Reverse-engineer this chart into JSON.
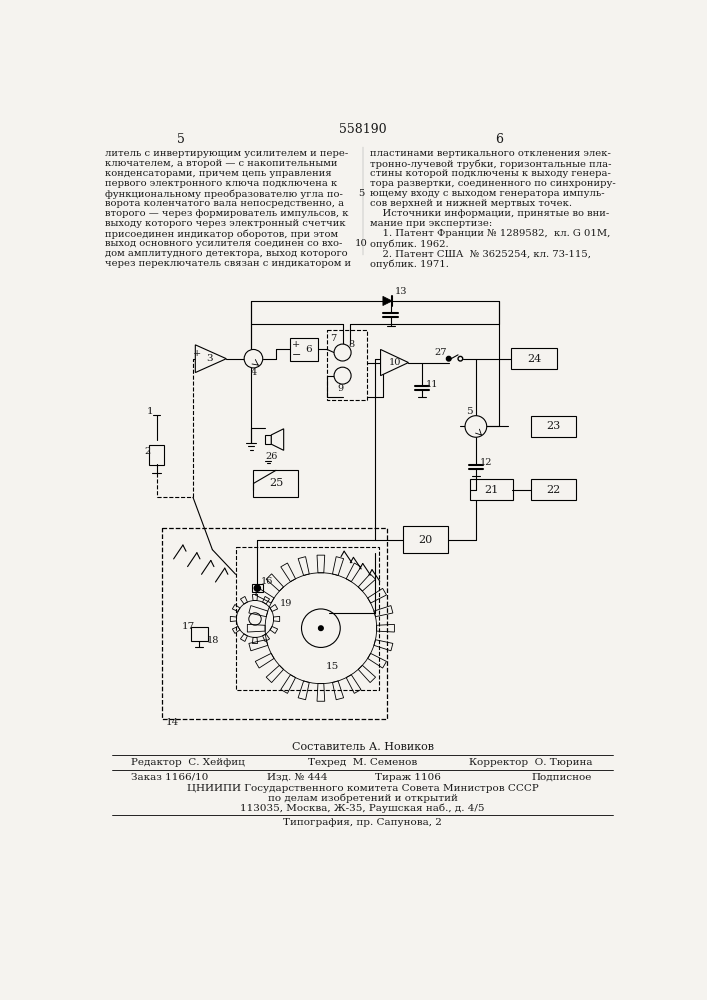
{
  "patent_number": "558190",
  "page_left": "5",
  "page_right": "6",
  "background_color": "#f5f3ef",
  "text_color": "#1a1a1a",
  "left_column_text": [
    "литель с инвертирующим усилителем и пере-",
    "ключателем, а второй — с накопительными",
    "конденсаторами, причем цепь управления",
    "первого электронного ключа подключена к",
    "функциональному преобразователю угла по-",
    "ворота коленчатого вала непосредственно, а",
    "второго — через формирователь импульсов, к",
    "выходу которого через электронный счетчик",
    "присоединен индикатор оборотов, при этом",
    "выход основного усилителя соединен со вхо-",
    "дом амплитудного детектора, выход которого",
    "через переключатель связан с индикатором и"
  ],
  "right_column_text": [
    "пластинами вертикального откленения элек-",
    "тронно-лучевой трубки, горизонтальные пла-",
    "стины которой подключены к выходу генера-",
    "тора развертки, соединенного по синхрониру-",
    "ющему входу с выходом генератора импуль-",
    "сов верхней и нижней мертвых точек.",
    "    Источники информации, принятые во вни-",
    "мание при экспертизе:",
    "    1. Патент Франции № 1289582,  кл. G 01M,",
    "опублик. 1962.",
    "    2. Патент США  № 3625254, кл. 73-115,",
    "опублик. 1971."
  ],
  "footer_composer": "Составитель А. Новиков",
  "footer_line1_left": "Редактор  С. Хейфиц",
  "footer_line1_center": "Техред  М. Семенов",
  "footer_line1_right": "Корректор  О. Тюрина",
  "footer_line2_left": "Заказ 1166/10",
  "footer_line2_c1": "Изд. № 444",
  "footer_line2_c2": "Тираж 1106",
  "footer_line2_right": "Подписное",
  "footer_line3": "ЦНИИПИ Государственного комитета Совета Министров СССР",
  "footer_line4": "по делам изобретений и открытий",
  "footer_line5": "113035, Москва, Ж-35, Раушская наб., д. 4/5",
  "footer_line6": "Типография, пр. Сапунова, 2"
}
